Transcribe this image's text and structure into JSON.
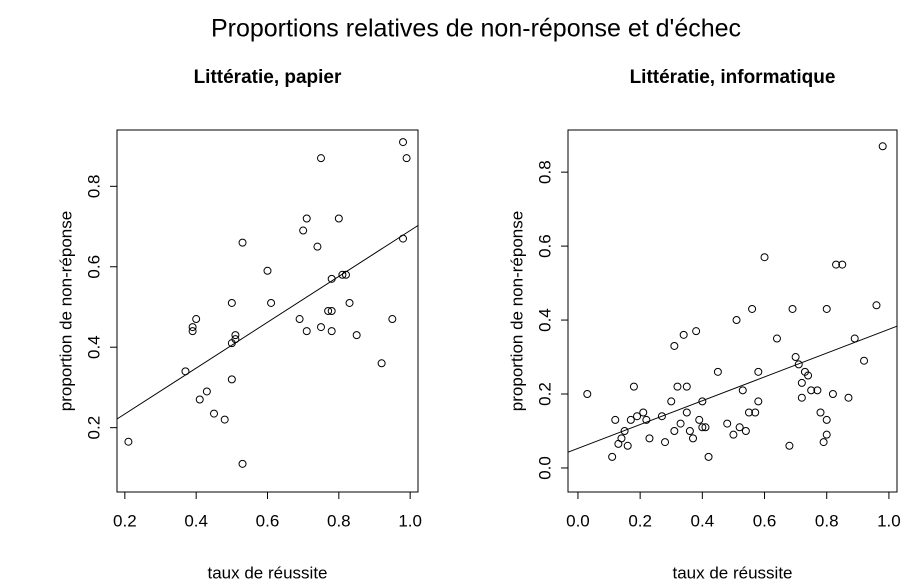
{
  "title": "Proportions relatives de non-réponse et d'échec",
  "chart_data": [
    {
      "type": "scatter",
      "title": "Littératie, papier",
      "xlabel": "taux de réussite",
      "ylabel": "proportion de non-réponse",
      "color": "#000000",
      "x": [
        0.21,
        0.37,
        0.39,
        0.4,
        0.39,
        0.41,
        0.43,
        0.45,
        0.48,
        0.5,
        0.5,
        0.5,
        0.51,
        0.51,
        0.53,
        0.53,
        0.6,
        0.61,
        0.69,
        0.7,
        0.71,
        0.71,
        0.74,
        0.75,
        0.75,
        0.77,
        0.78,
        0.78,
        0.78,
        0.8,
        0.81,
        0.82,
        0.83,
        0.85,
        0.92,
        0.95,
        0.98,
        0.99,
        0.98
      ],
      "values": [
        0.165,
        0.34,
        0.45,
        0.47,
        0.44,
        0.27,
        0.29,
        0.235,
        0.22,
        0.32,
        0.41,
        0.51,
        0.43,
        0.42,
        0.66,
        0.11,
        0.59,
        0.51,
        0.47,
        0.69,
        0.72,
        0.44,
        0.65,
        0.87,
        0.45,
        0.49,
        0.49,
        0.57,
        0.44,
        0.72,
        0.58,
        0.58,
        0.51,
        0.43,
        0.36,
        0.47,
        0.91,
        0.87,
        0.67
      ],
      "regression": {
        "intercept": 0.12,
        "slope": 0.57
      },
      "xlim": [
        0.178,
        1.022
      ],
      "ylim": [
        0.04,
        0.94
      ],
      "xticks": [
        0.2,
        0.4,
        0.6,
        0.8,
        {
          "value": 1,
          "label": "1.0"
        }
      ],
      "yticks": [
        0.2,
        0.4,
        0.6,
        0.8
      ]
    },
    {
      "type": "scatter",
      "title": "Littératie, informatique",
      "xlabel": "taux de réussite",
      "ylabel": "proportion de non-réponse",
      "color": "#000000",
      "x": [
        0.03,
        0.11,
        0.12,
        0.13,
        0.14,
        0.15,
        0.16,
        0.17,
        0.18,
        0.19,
        0.21,
        0.22,
        0.23,
        0.27,
        0.28,
        0.3,
        0.31,
        0.31,
        0.32,
        0.33,
        0.34,
        0.35,
        0.35,
        0.36,
        0.37,
        0.38,
        0.39,
        0.4,
        0.4,
        0.41,
        0.42,
        0.45,
        0.48,
        0.5,
        0.51,
        0.52,
        0.53,
        0.54,
        0.55,
        0.56,
        0.57,
        0.58,
        0.58,
        0.6,
        0.64,
        0.68,
        0.69,
        0.7,
        0.71,
        0.72,
        0.72,
        0.73,
        0.74,
        0.75,
        0.77,
        0.78,
        0.79,
        0.8,
        0.8,
        0.8,
        0.82,
        0.83,
        0.85,
        0.87,
        0.89,
        0.92,
        0.96,
        0.98
      ],
      "values": [
        0.2,
        0.03,
        0.13,
        0.065,
        0.08,
        0.1,
        0.06,
        0.13,
        0.22,
        0.14,
        0.15,
        0.13,
        0.08,
        0.14,
        0.07,
        0.18,
        0.33,
        0.1,
        0.22,
        0.12,
        0.36,
        0.22,
        0.15,
        0.1,
        0.08,
        0.37,
        0.13,
        0.11,
        0.18,
        0.11,
        0.03,
        0.26,
        0.12,
        0.09,
        0.4,
        0.11,
        0.21,
        0.1,
        0.15,
        0.43,
        0.15,
        0.26,
        0.18,
        0.57,
        0.35,
        0.06,
        0.43,
        0.3,
        0.28,
        0.19,
        0.23,
        0.26,
        0.25,
        0.21,
        0.21,
        0.15,
        0.07,
        0.43,
        0.13,
        0.09,
        0.2,
        0.55,
        0.55,
        0.19,
        0.35,
        0.29,
        0.44,
        0.87
      ],
      "regression": {
        "intercept": 0.053,
        "slope": 0.322
      },
      "xlim": [
        -0.032,
        1.026
      ],
      "ylim": [
        -0.065,
        0.914
      ],
      "xticks": [
        {
          "value": 0,
          "label": "0.0"
        },
        0.2,
        0.4,
        0.6,
        0.8,
        {
          "value": 1,
          "label": "1.0"
        }
      ],
      "yticks": [
        {
          "value": 0,
          "label": "0.0"
        },
        0.2,
        0.4,
        0.6,
        0.8
      ]
    }
  ]
}
